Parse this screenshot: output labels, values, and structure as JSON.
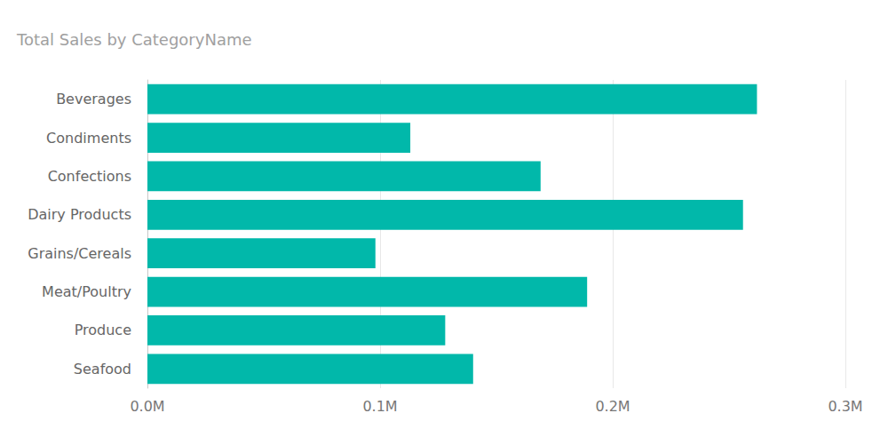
{
  "chart_data": {
    "type": "bar",
    "title": "Total Sales by CategoryName",
    "orientation": "horizontal",
    "categories": [
      "Beverages",
      "Condiments",
      "Confections",
      "Dairy Products",
      "Grains/Cereals",
      "Meat/Poultry",
      "Produce",
      "Seafood"
    ],
    "values": [
      262000,
      113000,
      169000,
      256000,
      98000,
      189000,
      128000,
      140000
    ],
    "color": "#01b8aa",
    "xlim": [
      0,
      300000
    ],
    "xticks": [
      {
        "value": 0,
        "label": "0.0M"
      },
      {
        "value": 100000,
        "label": "0.1M"
      },
      {
        "value": 200000,
        "label": "0.2M"
      },
      {
        "value": 300000,
        "label": "0.3M"
      }
    ],
    "grid": true
  }
}
